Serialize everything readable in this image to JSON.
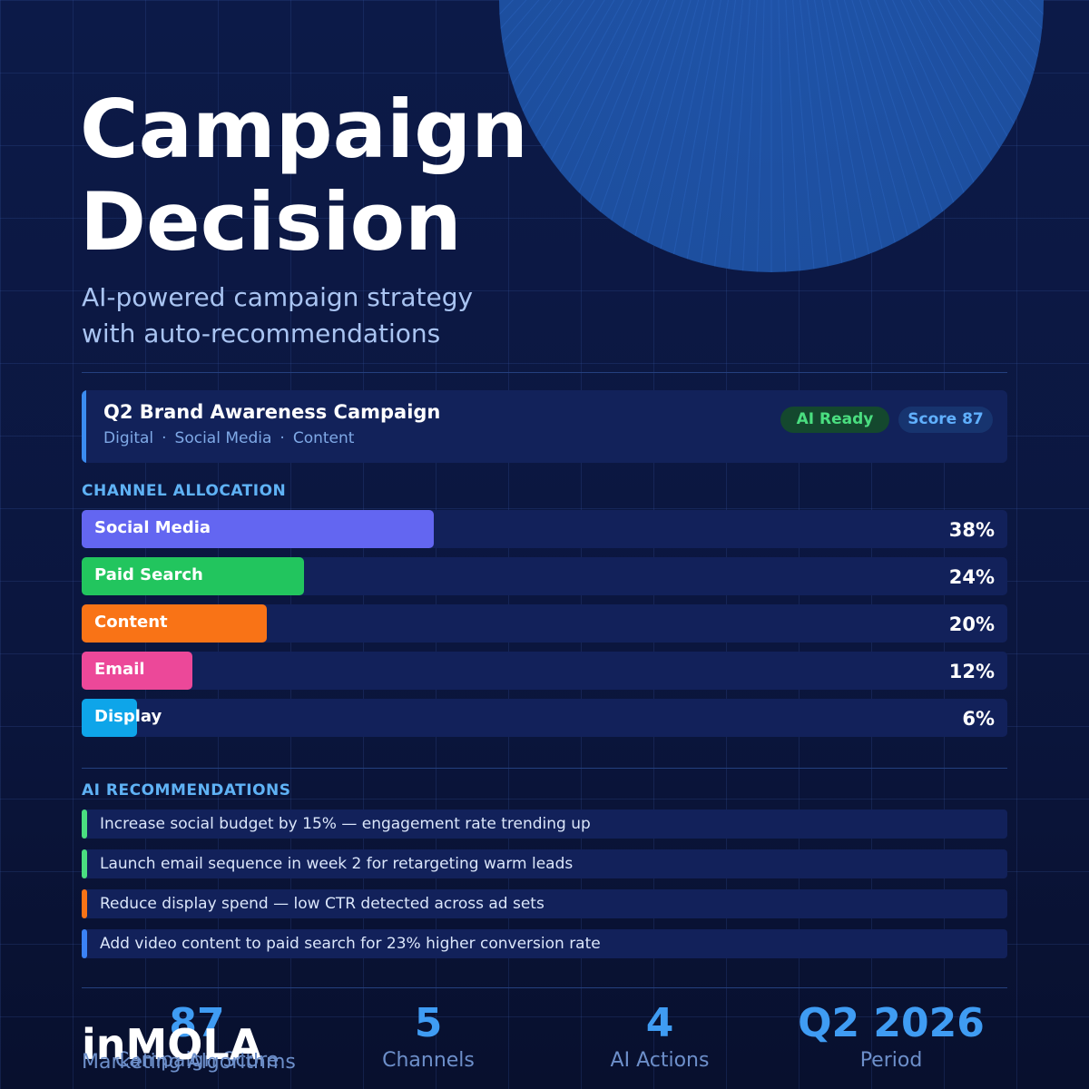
{
  "hero": {
    "title_line1": "Campaign",
    "title_line2": "Decision",
    "subtitle_line1": "AI-powered campaign strategy",
    "subtitle_line2": "with auto-recommendations"
  },
  "campaign": {
    "name": "Q2 Brand Awareness Campaign",
    "tags": [
      "Digital",
      "Social Media",
      "Content"
    ],
    "tag_separator": "·",
    "status_badge": "AI Ready",
    "score_badge": "Score 87"
  },
  "channels": {
    "section_label": "CHANNEL ALLOCATION",
    "items": [
      {
        "label": "Social Media",
        "value": 38,
        "display": "38%",
        "color": "#6366f1"
      },
      {
        "label": "Paid Search",
        "value": 24,
        "display": "24%",
        "color": "#22c55e"
      },
      {
        "label": "Content",
        "value": 20,
        "display": "20%",
        "color": "#f97316"
      },
      {
        "label": "Email",
        "value": 12,
        "display": "12%",
        "color": "#ec4899"
      },
      {
        "label": "Display",
        "value": 6,
        "display": "6%",
        "color": "#0ea5e9"
      }
    ]
  },
  "recommendations": {
    "section_label": "AI RECOMMENDATIONS",
    "items": [
      {
        "text": "Increase social budget by 15% — engagement rate trending up",
        "color": "#4ade80"
      },
      {
        "text": "Launch email sequence in week 2 for retargeting warm leads",
        "color": "#4ade80"
      },
      {
        "text": "Reduce display spend — low CTR detected across ad sets",
        "color": "#f97316"
      },
      {
        "text": "Add video content to paid search for 23% higher conversion rate",
        "color": "#3b82f6"
      }
    ]
  },
  "stats": [
    {
      "value": "87",
      "label": "Campaign Score"
    },
    {
      "value": "5",
      "label": "Channels"
    },
    {
      "value": "4",
      "label": "AI Actions"
    },
    {
      "value": "Q2 2026",
      "label": "Period"
    }
  ],
  "brand": {
    "name": "inMOLA",
    "tagline": "Marketing Algorithms"
  },
  "colors": {
    "accent_blue": "#3f9cf3",
    "section_label": "#5fb2f5",
    "background": "#0c1a48",
    "card": "#12225a"
  }
}
